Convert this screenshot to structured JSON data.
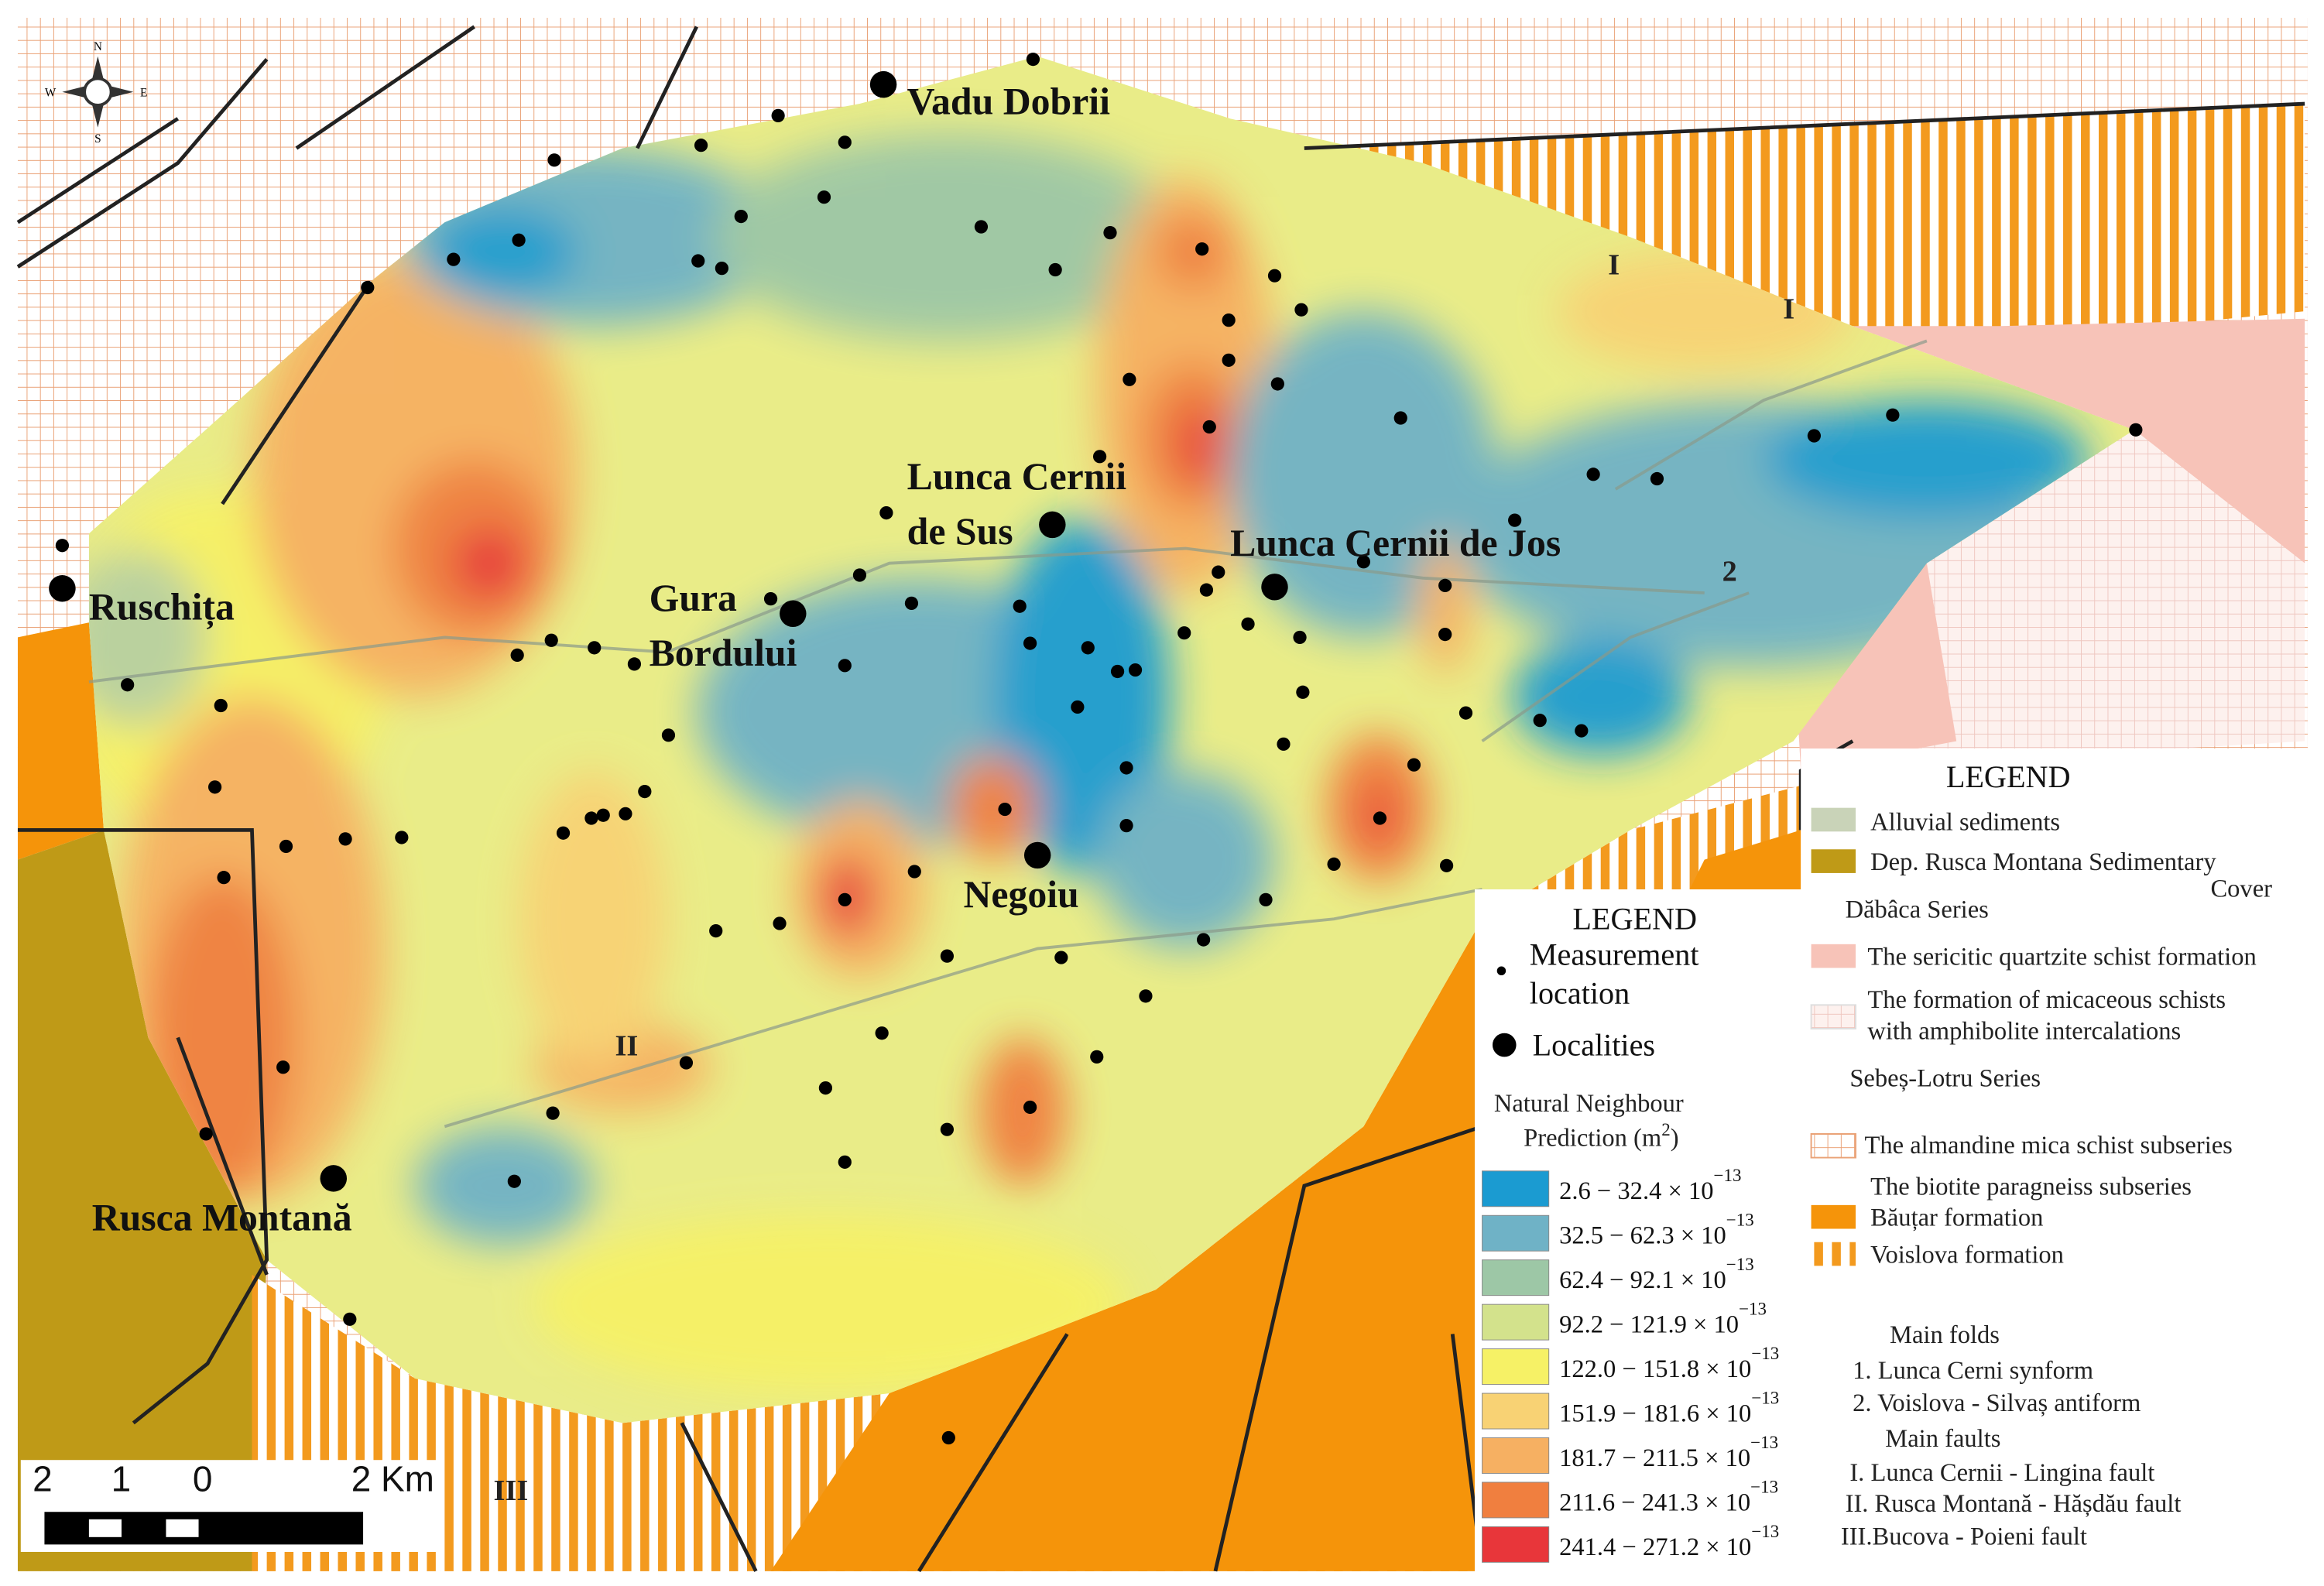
{
  "map": {
    "compass": [
      "N",
      "S",
      "W",
      "E"
    ],
    "places": [
      "Vadu Dobrii",
      "Lunca Cernii",
      "de Sus",
      "Lunca Cernii de Jos",
      "Ruschița",
      "Gura",
      "Bordului",
      "Negoiu",
      "Rusca Montană"
    ],
    "structure_labels": [
      "I",
      "I",
      "2",
      "II",
      "III"
    ],
    "scale_bar": [
      "2",
      "1",
      "0",
      "2 Km"
    ]
  },
  "legend_prediction": {
    "title": "LEGEND",
    "measurement": [
      "Measurement",
      "location"
    ],
    "localities": "Localities",
    "prediction_title": [
      "Natural Neighbour",
      "Prediction (m",
      "2",
      ")"
    ],
    "classes": [
      {
        "range": "2.6 − 32.4 × 10",
        "exponent": "−13",
        "color": "#1b9bd1"
      },
      {
        "range": "32.5 − 62.3 × 10",
        "exponent": "−13",
        "color": "#6fb2c6"
      },
      {
        "range": "62.4 − 92.1 × 10",
        "exponent": "−13",
        "color": "#9dc7a6"
      },
      {
        "range": "92.2 − 121.9 × 10",
        "exponent": "−13",
        "color": "#d3e28c"
      },
      {
        "range": "122.0 − 151.8 × 10",
        "exponent": "−13",
        "color": "#f6f166"
      },
      {
        "range": "151.9 − 181.6 × 10",
        "exponent": "−13",
        "color": "#f8d274"
      },
      {
        "range": "181.7 − 211.5 × 10",
        "exponent": "−13",
        "color": "#f6b062"
      },
      {
        "range": "211.6 − 241.3 × 10",
        "exponent": "−13",
        "color": "#f07f3f"
      },
      {
        "range": "241.4 − 271.2 × 10",
        "exponent": "−13",
        "color": "#e8363a"
      }
    ]
  },
  "legend_geology": {
    "title": "LEGEND",
    "lines": [
      "Alluvial sediments",
      "Dep. Rusca Montana Sedimentary",
      "Cover",
      "Dăbâca Series",
      "The sericitic quartzite schist formation",
      "The formation of micaceous schists",
      "with amphibolite intercalations",
      "Sebeș-Lotru Series",
      "The almandine mica schist subseries",
      "The biotite paragneiss subseries",
      "Băuțar formation",
      "Voislova formation",
      "Main folds",
      "1. Lunca Cerni synform",
      "2. Voislova - Silvaș antiform",
      "Main faults",
      "I.  Lunca Cernii - Lingina fault",
      "II. Rusca Montană - Hășdău fault",
      "III.Bucova - Poieni fault"
    ]
  }
}
